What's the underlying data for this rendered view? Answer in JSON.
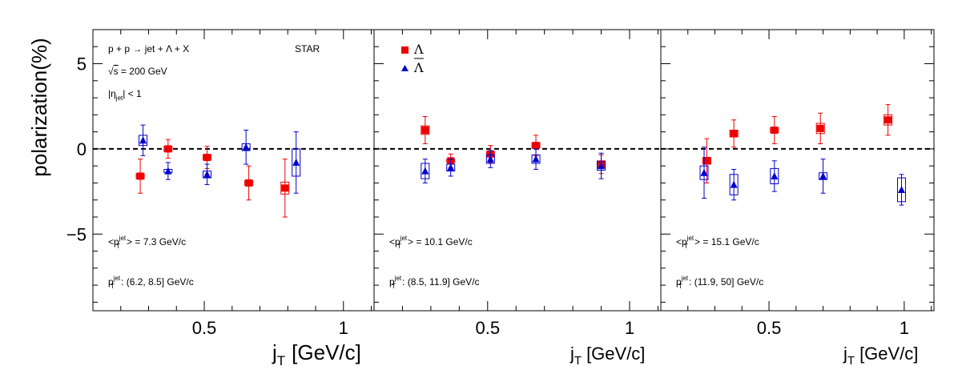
{
  "chart_data": {
    "type": "scatter",
    "ylabel": "polarization(%)",
    "xlabel": "j",
    "xlabel_sub": "T",
    "xlabel_unit": "[GeV/c]",
    "yticks": [
      5,
      0,
      -5
    ],
    "ytick_labels": [
      "5",
      "0",
      "−5"
    ],
    "xticks": [
      0.5,
      1
    ],
    "xtick_labels": [
      "0.5",
      "1"
    ],
    "ylim": [
      -9.5,
      7.0
    ],
    "xlim": [
      0.1,
      1.11
    ],
    "reference_line": 0,
    "legend_placement": "top-left of middle panel",
    "legend": {
      "lambda": {
        "label": "Λ",
        "color": "#ee0000",
        "marker": "square"
      },
      "antilambda": {
        "label": "Λ",
        "color": "#0000cc",
        "marker": "triangle"
      }
    },
    "annotations": {
      "reaction": "p + p → jet + Λ + X",
      "star": "STAR",
      "energy_root": "√",
      "energy_s": "s",
      "energy_value": " = 200 GeV",
      "eta_open": "|η",
      "eta_sub": "jet",
      "eta_close": "| < 1"
    },
    "panels": [
      {
        "mean_pt_prefix": "<p",
        "pt_sup": "jet",
        "pt_sub": "T",
        "mean_pt_value": "> = 7.3 GeV/c",
        "range_prefix": "p",
        "range_value": ": (6.2, 8.5] GeV/c",
        "lambda": [
          {
            "x": 0.27,
            "y": -1.6,
            "stat": 1.0,
            "sys": 0.15
          },
          {
            "x": 0.37,
            "y": 0.0,
            "stat": 0.55,
            "sys": 0.15
          },
          {
            "x": 0.51,
            "y": -0.5,
            "stat": 0.65,
            "sys": 0.15
          },
          {
            "x": 0.66,
            "y": -2.0,
            "stat": 1.0,
            "sys": 0.15
          },
          {
            "x": 0.79,
            "y": -2.3,
            "stat": 1.7,
            "sys": 0.35
          }
        ],
        "antilambda": [
          {
            "x": 0.28,
            "y": 0.5,
            "stat": 0.9,
            "sys": 0.3
          },
          {
            "x": 0.37,
            "y": -1.3,
            "stat": 0.5,
            "sys": 0.1
          },
          {
            "x": 0.51,
            "y": -1.5,
            "stat": 0.6,
            "sys": 0.2
          },
          {
            "x": 0.65,
            "y": 0.1,
            "stat": 1.0,
            "sys": 0.2
          },
          {
            "x": 0.83,
            "y": -0.8,
            "stat": 1.8,
            "sys": 0.8
          }
        ]
      },
      {
        "mean_pt_prefix": "<p",
        "pt_sup": "jet",
        "pt_sub": "T",
        "mean_pt_value": "> = 10.1 GeV/c",
        "range_prefix": "p",
        "range_value": ": (8.5, 11.9] GeV/c",
        "lambda": [
          {
            "x": 0.28,
            "y": 1.1,
            "stat": 0.8,
            "sys": 0.25
          },
          {
            "x": 0.37,
            "y": -0.7,
            "stat": 0.4,
            "sys": 0.1
          },
          {
            "x": 0.51,
            "y": -0.3,
            "stat": 0.5,
            "sys": 0.15
          },
          {
            "x": 0.67,
            "y": 0.2,
            "stat": 0.6,
            "sys": 0.15
          },
          {
            "x": 0.9,
            "y": -0.9,
            "stat": 0.55,
            "sys": 0.2
          }
        ],
        "antilambda": [
          {
            "x": 0.28,
            "y": -1.3,
            "stat": 0.7,
            "sys": 0.45
          },
          {
            "x": 0.37,
            "y": -1.1,
            "stat": 0.5,
            "sys": 0.2
          },
          {
            "x": 0.51,
            "y": -0.6,
            "stat": 0.5,
            "sys": 0.25
          },
          {
            "x": 0.67,
            "y": -0.6,
            "stat": 0.6,
            "sys": 0.25
          },
          {
            "x": 0.9,
            "y": -1.0,
            "stat": 0.75,
            "sys": 0.25
          }
        ]
      },
      {
        "mean_pt_prefix": "<p",
        "pt_sup": "jet",
        "pt_sub": "T",
        "mean_pt_value": "> = 15.1 GeV/c",
        "range_prefix": "p",
        "range_value": ": (11.9, 50] GeV/c",
        "lambda": [
          {
            "x": 0.27,
            "y": -0.7,
            "stat": 1.3,
            "sys": 0.2
          },
          {
            "x": 0.37,
            "y": 0.9,
            "stat": 0.8,
            "sys": 0.2
          },
          {
            "x": 0.52,
            "y": 1.1,
            "stat": 0.8,
            "sys": 0.15
          },
          {
            "x": 0.69,
            "y": 1.2,
            "stat": 0.9,
            "sys": 0.3
          },
          {
            "x": 0.94,
            "y": 1.7,
            "stat": 0.9,
            "sys": 0.3
          }
        ],
        "antilambda": [
          {
            "x": 0.26,
            "y": -1.4,
            "stat": 1.5,
            "sys": 0.4
          },
          {
            "x": 0.37,
            "y": -2.1,
            "stat": 0.9,
            "sys": 0.6
          },
          {
            "x": 0.52,
            "y": -1.6,
            "stat": 0.9,
            "sys": 0.45
          },
          {
            "x": 0.7,
            "y": -1.6,
            "stat": 1.0,
            "sys": 0.2
          },
          {
            "x": 0.99,
            "y": -2.4,
            "stat": 0.9,
            "sys": 0.7
          }
        ]
      }
    ]
  }
}
